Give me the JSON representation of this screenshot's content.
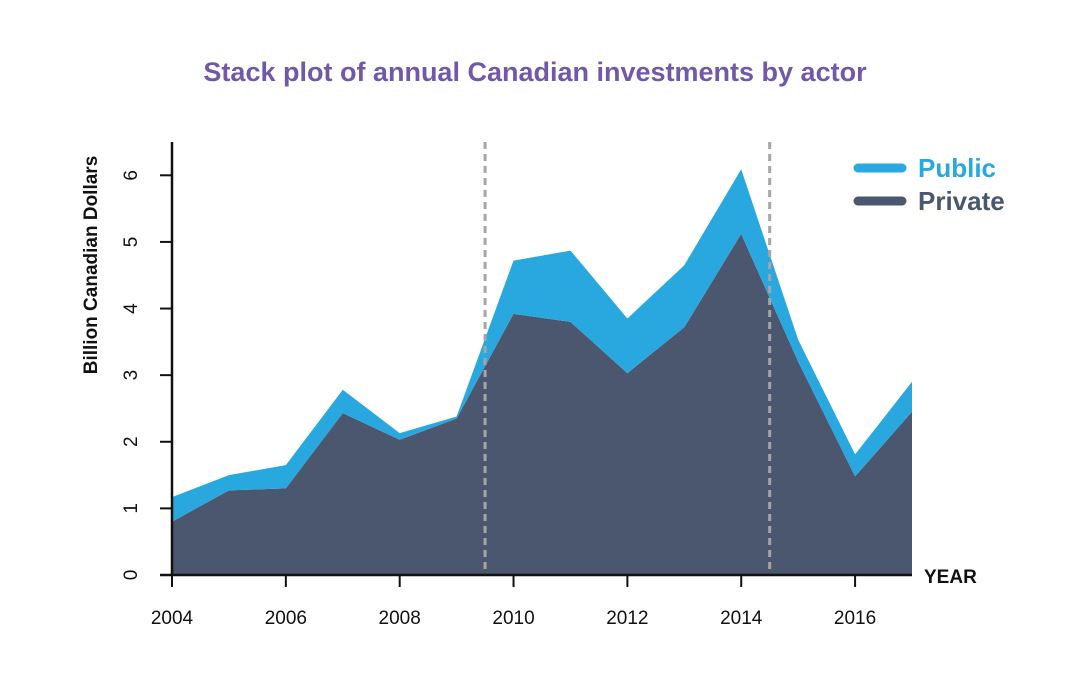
{
  "chart_data": {
    "type": "area",
    "stacked": true,
    "title": "Stack plot of annual Canadian investments by actor",
    "xlabel": "YEAR",
    "ylabel": "Billion Canadian Dollars",
    "xlim": [
      2004,
      2017
    ],
    "ylim": [
      0,
      6.5
    ],
    "x": [
      2004,
      2005,
      2006,
      2007,
      2008,
      2009,
      2010,
      2011,
      2012,
      2013,
      2014,
      2015,
      2016,
      2017
    ],
    "x_ticks": [
      2004,
      2006,
      2008,
      2010,
      2012,
      2014,
      2016
    ],
    "x_tick_labels": [
      "2004",
      "2006",
      "2008",
      "2010",
      "2012",
      "2014",
      "2016"
    ],
    "y_ticks": [
      0,
      1,
      2,
      3,
      4,
      5,
      6
    ],
    "y_tick_labels": [
      "0",
      "1",
      "2",
      "3",
      "4",
      "5",
      "6"
    ],
    "series": [
      {
        "name": "Private",
        "color": "#4b566f",
        "values": [
          0.8,
          1.27,
          1.3,
          2.43,
          2.03,
          2.35,
          3.92,
          3.8,
          3.03,
          3.72,
          5.12,
          3.2,
          1.48,
          2.45
        ]
      },
      {
        "name": "Public",
        "color": "#29a8e0",
        "values": [
          0.37,
          0.23,
          0.35,
          0.35,
          0.1,
          0.03,
          0.8,
          1.07,
          0.82,
          0.93,
          0.97,
          0.33,
          0.33,
          0.45
        ]
      }
    ],
    "vertical_lines": [
      2009.5,
      2014.5
    ],
    "legend_position": "top-right",
    "grid": false
  },
  "colors": {
    "title": "#7158a8",
    "public": "#29a8e0",
    "private": "#4b566f",
    "axis": "#111111",
    "guide_line": "#a5a5a5"
  }
}
